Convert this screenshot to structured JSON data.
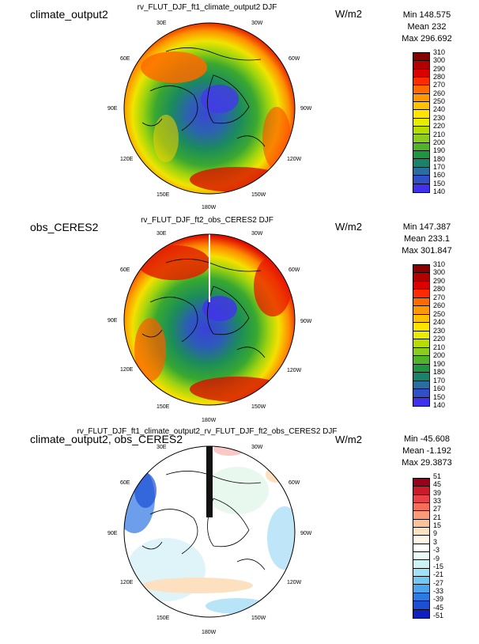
{
  "plots": [
    {
      "case_label": "climate_output2",
      "title": "rv_FLUT_DJF_ft1_climate_output2  DJF",
      "units": "W/m2",
      "stats": {
        "min": "Min 148.575",
        "mean": "Mean 232",
        "max": "Max 296.692"
      },
      "colorbar": {
        "labels": [
          "310",
          "300",
          "290",
          "280",
          "270",
          "260",
          "250",
          "240",
          "230",
          "220",
          "210",
          "200",
          "190",
          "180",
          "170",
          "160",
          "150",
          "140"
        ],
        "colors": [
          "#8a0000",
          "#b30000",
          "#dd0000",
          "#ff2a00",
          "#ff6a00",
          "#ff9800",
          "#ffc000",
          "#ffe400",
          "#e8ec00",
          "#b8dc00",
          "#8ccc1c",
          "#50b428",
          "#1e9640",
          "#198268",
          "#2a6ea0",
          "#3050c8",
          "#4030f0"
        ]
      },
      "lon_labels": [
        "30E",
        "30W",
        "60E",
        "60W",
        "90E",
        "90W",
        "120E",
        "120W",
        "150E",
        "150W",
        "180W"
      ],
      "data_range": {
        "min": 148.575,
        "mean": 232,
        "max": 296.692
      }
    },
    {
      "case_label": "obs_CERES2",
      "title": "rv_FLUT_DJF_ft2_obs_CERES2  DJF",
      "units": "W/m2",
      "stats": {
        "min": "Min 147.387",
        "mean": "Mean 233.1",
        "max": "Max 301.847"
      },
      "colorbar": {
        "labels": [
          "310",
          "300",
          "290",
          "280",
          "270",
          "260",
          "250",
          "240",
          "230",
          "220",
          "210",
          "200",
          "190",
          "180",
          "170",
          "160",
          "150",
          "140"
        ],
        "colors": [
          "#8a0000",
          "#b30000",
          "#dd0000",
          "#ff2a00",
          "#ff6a00",
          "#ff9800",
          "#ffc000",
          "#ffe400",
          "#e8ec00",
          "#b8dc00",
          "#8ccc1c",
          "#50b428",
          "#1e9640",
          "#198268",
          "#2a6ea0",
          "#3050c8",
          "#4030f0"
        ]
      },
      "lon_labels": [
        "30E",
        "30W",
        "60E",
        "60W",
        "90E",
        "90W",
        "120E",
        "120W",
        "150E",
        "150W",
        "180W"
      ],
      "data_range": {
        "min": 147.387,
        "mean": 233.1,
        "max": 301.847
      }
    },
    {
      "case_label": "climate_output2, obs_CERES2",
      "title": "rv_FLUT_DJF_ft1_climate_output2_rv_FLUT_DJF_ft2_obs_CERES2  DJF",
      "units": "W/m2",
      "stats": {
        "min": "Min -45.608",
        "mean": "Mean -1.192",
        "max": "Max 29.3873"
      },
      "colorbar": {
        "labels": [
          "51",
          "45",
          "39",
          "33",
          "27",
          "21",
          "15",
          "9",
          "3",
          "-3",
          "-9",
          "-15",
          "-21",
          "-27",
          "-33",
          "-39",
          "-45",
          "-51"
        ],
        "colors": [
          "#9a0018",
          "#cc1a2a",
          "#e8414a",
          "#f46e5a",
          "#f99a78",
          "#fcc09a",
          "#fde2c0",
          "#fff6e6",
          "#ffffff",
          "#eafaf6",
          "#ccf2f4",
          "#a2e2f6",
          "#74c8f4",
          "#4aa6ee",
          "#2a7ce4",
          "#1c50d4",
          "#1020c0"
        ]
      },
      "lon_labels": [
        "30E",
        "30W",
        "60E",
        "60W",
        "90E",
        "90W",
        "120E",
        "120W",
        "150E",
        "150W",
        "180W"
      ],
      "data_range": {
        "min": -45.608,
        "mean": -1.192,
        "max": 29.3873
      }
    }
  ]
}
